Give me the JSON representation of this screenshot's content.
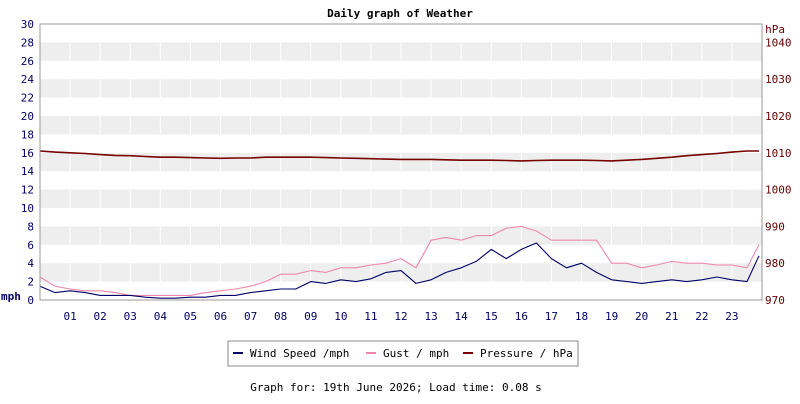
{
  "chart_data": {
    "type": "line",
    "title": "Daily graph of Weather",
    "footer": "Graph for: 19th June 2026; Load time: 0.08 s",
    "x_tick_labels": [
      "01",
      "02",
      "03",
      "04",
      "05",
      "06",
      "07",
      "08",
      "09",
      "10",
      "11",
      "12",
      "13",
      "14",
      "15",
      "16",
      "17",
      "18",
      "19",
      "20",
      "21",
      "22",
      "23"
    ],
    "left_axis": {
      "unit": "mph",
      "min": 0,
      "max": 30,
      "step": 2
    },
    "right_axis": {
      "unit": "hPa",
      "min": 970,
      "max": 1045,
      "ticks": [
        970,
        980,
        990,
        1000,
        1010,
        1020,
        1030,
        1040
      ]
    },
    "grid": true,
    "legend_placement": "bottom-center",
    "colors": {
      "wind": "#000066",
      "gust": "#ee88aa",
      "pressure": "#770000",
      "band": "#eeeeee",
      "grid": "#cccccc"
    },
    "x_hours": [
      0,
      0.5,
      1,
      1.5,
      2,
      2.5,
      3,
      3.5,
      4,
      4.5,
      5,
      5.5,
      6,
      6.5,
      7,
      7.5,
      8,
      8.5,
      9,
      9.5,
      10,
      10.5,
      11,
      11.5,
      12,
      12.5,
      13,
      13.5,
      14,
      14.5,
      15,
      15.5,
      16,
      16.5,
      17,
      17.5,
      18,
      18.5,
      19,
      19.5,
      20,
      20.5,
      21,
      21.5,
      22,
      22.5,
      23,
      23.5,
      23.9
    ],
    "series": [
      {
        "name": "Wind Speed /mph",
        "axis": "left",
        "values": [
          1.5,
          0.8,
          1,
          0.8,
          0.5,
          0.5,
          0.5,
          0.3,
          0.2,
          0.2,
          0.3,
          0.3,
          0.5,
          0.5,
          0.8,
          1,
          1.2,
          1.2,
          2,
          1.8,
          2.2,
          2,
          2.3,
          3,
          3.2,
          1.8,
          2.2,
          3,
          3.5,
          4.2,
          5.5,
          4.5,
          5.5,
          6.2,
          4.5,
          3.5,
          4,
          3,
          2.2,
          2,
          1.8,
          2,
          2.2,
          2,
          2.2,
          2.5,
          2.2,
          2,
          4.8
        ]
      },
      {
        "name": "Gust / mph",
        "axis": "left",
        "values": [
          2.5,
          1.5,
          1.2,
          1,
          1,
          0.8,
          0.5,
          0.5,
          0.5,
          0.5,
          0.5,
          0.8,
          1,
          1.2,
          1.5,
          2,
          2.8,
          2.8,
          3.2,
          3,
          3.5,
          3.5,
          3.8,
          4,
          4.5,
          3.5,
          6.5,
          6.8,
          6.5,
          7,
          7,
          7.8,
          8,
          7.5,
          6.5,
          6.5,
          6.5,
          6.5,
          4,
          4,
          3.5,
          3.8,
          4.2,
          4,
          4,
          3.8,
          3.8,
          3.5,
          6
        ]
      },
      {
        "name": "Pressure / hPa",
        "axis": "right",
        "values": [
          1010.5,
          1010.2,
          1010,
          1009.8,
          1009.5,
          1009.3,
          1009.2,
          1009,
          1008.8,
          1008.8,
          1008.7,
          1008.6,
          1008.5,
          1008.6,
          1008.6,
          1008.8,
          1008.8,
          1008.8,
          1008.8,
          1008.7,
          1008.6,
          1008.5,
          1008.4,
          1008.3,
          1008.2,
          1008.2,
          1008.2,
          1008.1,
          1008,
          1008,
          1008,
          1007.9,
          1007.8,
          1007.9,
          1008,
          1008,
          1008,
          1007.9,
          1007.8,
          1008,
          1008.2,
          1008.5,
          1008.8,
          1009.2,
          1009.5,
          1009.8,
          1010.2,
          1010.5,
          1010.5
        ]
      }
    ]
  }
}
